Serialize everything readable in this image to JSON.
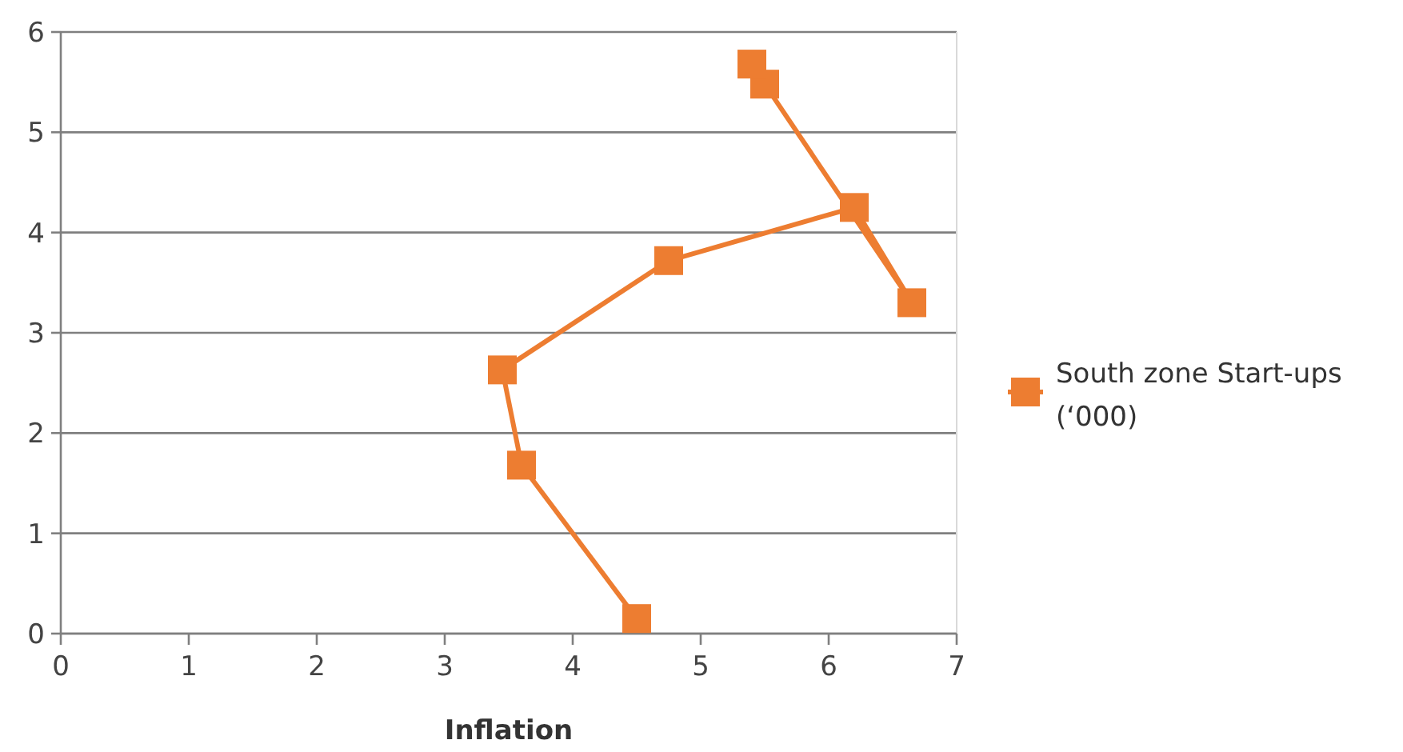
{
  "chart_data": {
    "type": "line",
    "xlabel": "Inflation",
    "x": [
      4.5,
      3.6,
      3.45,
      4.75,
      6.2,
      6.65,
      5.5,
      5.4
    ],
    "series": [
      {
        "name": "South zone Start-ups (‘000)",
        "color": "#ed7d31",
        "values": [
          0.15,
          1.68,
          2.63,
          3.72,
          4.25,
          3.3,
          5.48,
          5.68
        ]
      }
    ],
    "xlim": [
      0,
      7
    ],
    "xticks": [
      0,
      1,
      2,
      3,
      4,
      5,
      6,
      7
    ],
    "ylim": [
      0,
      6
    ],
    "yticks": [
      0,
      1,
      2,
      3,
      4,
      5,
      6
    ],
    "grid": "y",
    "legend": "right",
    "marker": "square"
  }
}
